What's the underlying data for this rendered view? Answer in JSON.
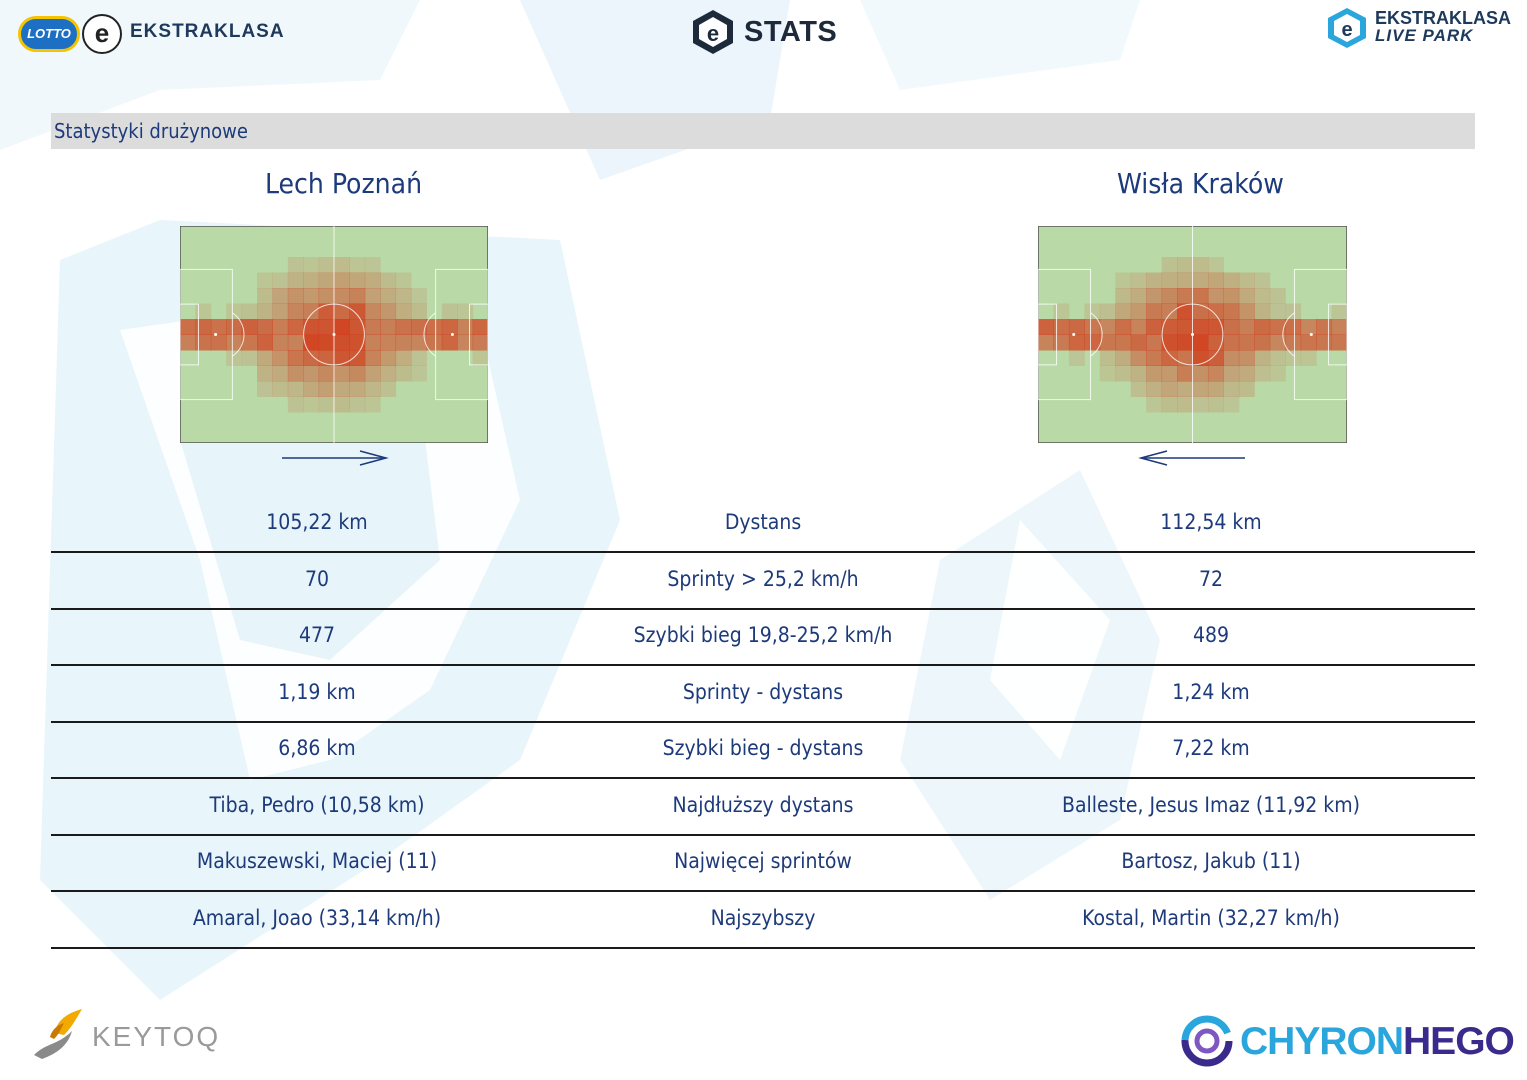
{
  "header": {
    "lotto_label": "LOTTO",
    "league_name": "EKSTRAKLASA",
    "stats_label": "STATS",
    "livepark_line1": "EKSTRAKLASA",
    "livepark_line2": "LIVE PARK"
  },
  "section": {
    "title": "Statystyki drużynowe"
  },
  "teams": {
    "home": {
      "name": "Lech Poznań",
      "attack_direction": "right"
    },
    "away": {
      "name": "Wisła Kraków",
      "attack_direction": "left"
    }
  },
  "stats": [
    {
      "label": "Dystans",
      "home": "105,22 km",
      "away": "112,54 km"
    },
    {
      "label": "Sprinty > 25,2 km/h",
      "home": "70",
      "away": "72"
    },
    {
      "label": "Szybki bieg 19,8-25,2 km/h",
      "home": "477",
      "away": "489"
    },
    {
      "label": "Sprinty - dystans",
      "home": "1,19 km",
      "away": "1,24 km"
    },
    {
      "label": "Szybki bieg - dystans",
      "home": "6,86 km",
      "away": "7,22 km"
    },
    {
      "label": "Najdłuższy dystans",
      "home": "Tiba, Pedro (10,58 km)",
      "away": "Balleste, Jesus Imaz (11,92 km)"
    },
    {
      "label": "Najwięcej sprintów",
      "home": "Makuszewski, Maciej (11)",
      "away": "Bartosz, Jakub (11)"
    },
    {
      "label": "Najszybszy",
      "home": "Amaral, Joao (33,14 km/h)",
      "away": "Kostal, Martin (32,27 km/h)"
    }
  ],
  "footer": {
    "keytoq_label": "KEYTOQ",
    "chyron_part1": "CHYRON",
    "chyron_part2": "HEGO"
  },
  "colors": {
    "text_blue": "#1d3a7a",
    "section_bar": "#dcdcdc",
    "pitch_green": "#b9d9a7",
    "heat_red": "#d23a1a"
  }
}
